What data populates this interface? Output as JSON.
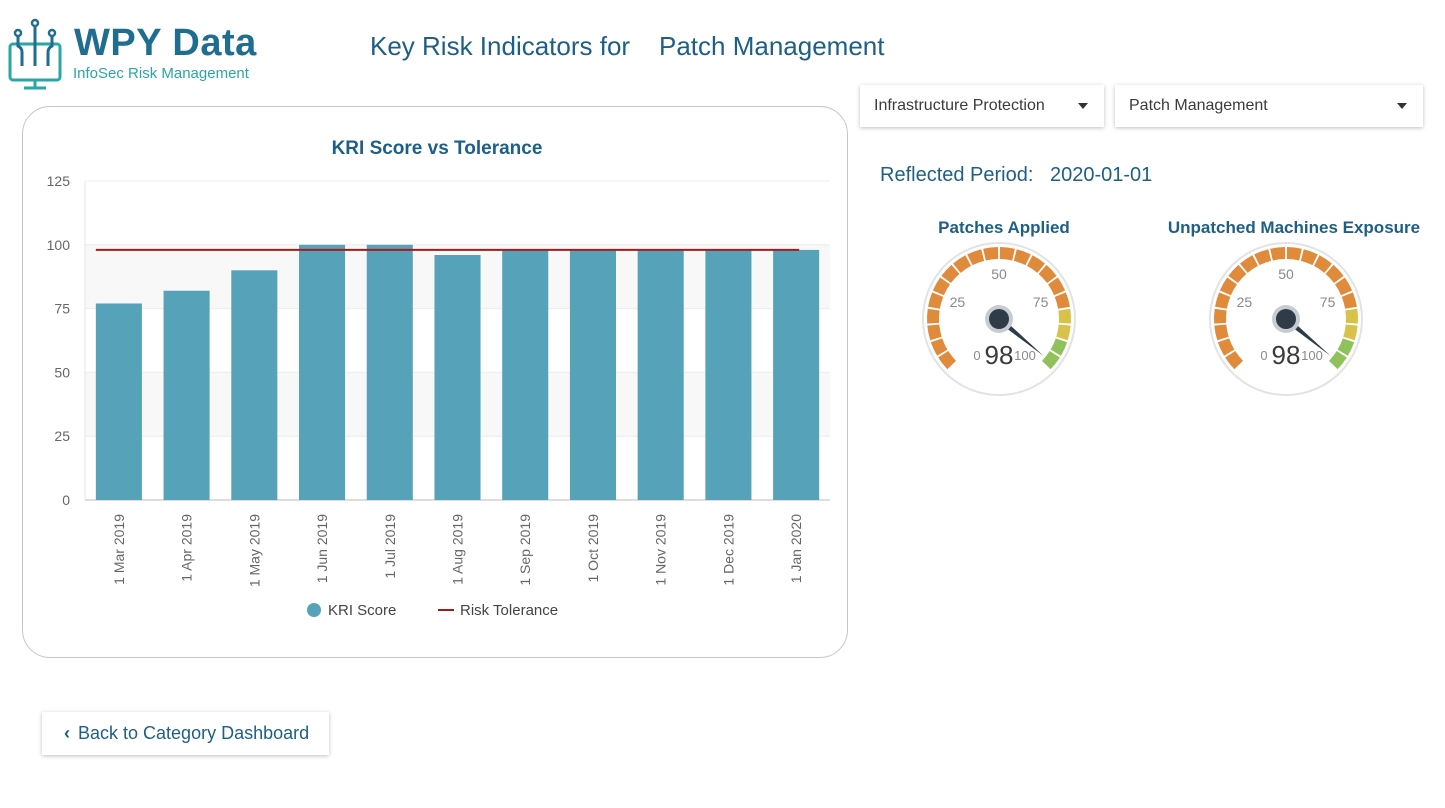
{
  "logo": {
    "title": "WPY Data",
    "subtitle": "InfoSec Risk Management"
  },
  "header": {
    "title_prefix": "Key Risk Indicators for",
    "title_kri": "Patch Management"
  },
  "filters": {
    "category": {
      "selected": "Infrastructure Protection"
    },
    "kri": {
      "selected": "Patch Management"
    }
  },
  "period": {
    "label": "Reflected Period:",
    "value": "2020-01-01"
  },
  "chart_data": {
    "type": "bar",
    "title": "KRI Score vs Tolerance",
    "categories": [
      "1 Mar 2019",
      "1 Apr 2019",
      "1 May 2019",
      "1 Jun 2019",
      "1 Jul 2019",
      "1 Aug 2019",
      "1 Sep 2019",
      "1 Oct 2019",
      "1 Nov 2019",
      "1 Dec 2019",
      "1 Jan 2020"
    ],
    "series": [
      {
        "name": "KRI Score",
        "type": "bar",
        "color": "#55a2b9",
        "values": [
          77,
          82,
          90,
          100,
          100,
          96,
          98,
          98,
          98,
          98,
          98
        ]
      },
      {
        "name": "Risk Tolerance",
        "type": "line",
        "color": "#a11d1d",
        "values": [
          98,
          98,
          98,
          98,
          98,
          98,
          98,
          98,
          98,
          98,
          98
        ]
      }
    ],
    "yticks": [
      0,
      25,
      50,
      75,
      100,
      125
    ],
    "ylim": [
      0,
      125
    ],
    "legend": "bottom-center",
    "grid": true
  },
  "gauges": [
    {
      "title": "Patches Applied",
      "value": "98",
      "min_label": "0",
      "max_label": "100",
      "ticks": [
        "25",
        "50",
        "75"
      ],
      "value_num": 98,
      "min": 0,
      "max": 100
    },
    {
      "title": "Unpatched Machines Exposure",
      "value": "98",
      "min_label": "0",
      "max_label": "100",
      "ticks": [
        "25",
        "50",
        "75"
      ],
      "value_num": 98,
      "min": 0,
      "max": 100
    }
  ],
  "colors": {
    "gauge_orange": "#e08a3c",
    "gauge_yellow": "#d9c24a",
    "gauge_green": "#8fc25a",
    "needle": "#2f3b46"
  },
  "back_button": {
    "label": "Back to Category Dashboard"
  }
}
